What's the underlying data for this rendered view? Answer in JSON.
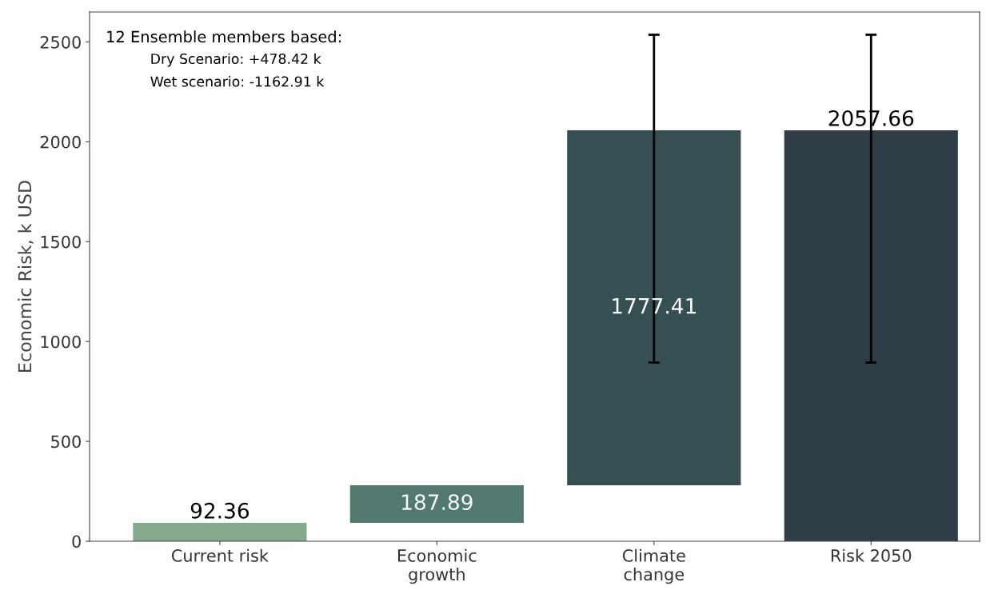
{
  "chart_data": {
    "type": "bar",
    "ylabel": "Economic Risk, k USD",
    "categories": [
      "Current risk",
      "Economic\ngrowth",
      "Climate\nchange",
      "Risk 2050"
    ],
    "values": [
      92.36,
      187.89,
      1777.41,
      2057.66
    ],
    "base": [
      0,
      92.36,
      280.25,
      0
    ],
    "colors": [
      "#84a98c",
      "#52796f",
      "#354f52",
      "#2f3e46"
    ],
    "errors": [
      null,
      null,
      [
        894.75,
        2536.08
      ],
      [
        894.75,
        2536.08
      ]
    ],
    "data_labels": true,
    "ylim": [
      0,
      2650
    ],
    "yticks": [
      0,
      500,
      1000,
      1500,
      2000,
      2500
    ],
    "grid": false,
    "legend": false,
    "annotations": [
      "12 Ensemble members based:",
      "Dry Scenario: +478.42 k",
      "Wet scenario: -1162.91 k"
    ]
  }
}
